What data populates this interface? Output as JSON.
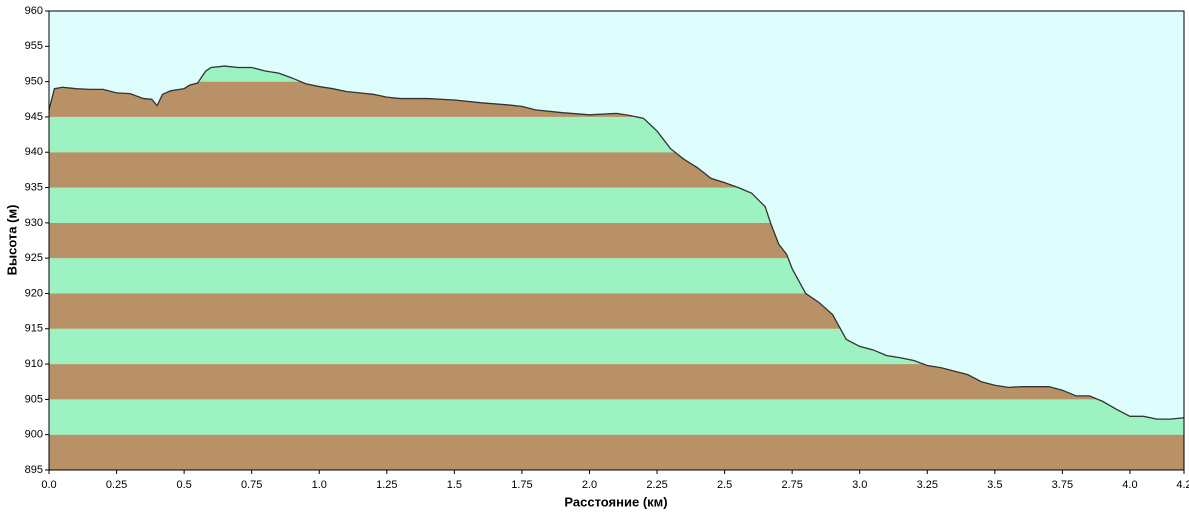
{
  "chart_data": {
    "type": "area",
    "x_label": "Расстояние  (км)",
    "y_label": "Высота (м)",
    "x": [
      0,
      0.02,
      0.05,
      0.1,
      0.15,
      0.2,
      0.25,
      0.3,
      0.35,
      0.38,
      0.4,
      0.42,
      0.45,
      0.5,
      0.52,
      0.55,
      0.58,
      0.6,
      0.65,
      0.7,
      0.75,
      0.8,
      0.85,
      0.9,
      0.95,
      1.0,
      1.05,
      1.1,
      1.15,
      1.2,
      1.25,
      1.3,
      1.4,
      1.5,
      1.6,
      1.7,
      1.75,
      1.8,
      1.9,
      2.0,
      2.1,
      2.15,
      2.2,
      2.25,
      2.3,
      2.35,
      2.4,
      2.45,
      2.5,
      2.55,
      2.6,
      2.65,
      2.67,
      2.7,
      2.73,
      2.75,
      2.8,
      2.85,
      2.9,
      2.95,
      3.0,
      3.05,
      3.1,
      3.15,
      3.2,
      3.25,
      3.3,
      3.35,
      3.4,
      3.45,
      3.5,
      3.55,
      3.6,
      3.7,
      3.75,
      3.8,
      3.85,
      3.9,
      3.95,
      4.0,
      4.05,
      4.1,
      4.15,
      4.2
    ],
    "values": [
      946,
      949,
      949.2,
      949,
      948.9,
      948.9,
      948.4,
      948.3,
      947.6,
      947.5,
      946.6,
      948.2,
      948.7,
      949,
      949.5,
      949.8,
      951.5,
      952,
      952.2,
      952,
      952,
      951.5,
      951.2,
      950.5,
      949.7,
      949.3,
      949,
      948.6,
      948.4,
      948.2,
      947.8,
      947.6,
      947.6,
      947.4,
      947,
      946.7,
      946.5,
      946,
      945.6,
      945.3,
      945.5,
      945.2,
      944.8,
      943,
      940.5,
      939,
      937.8,
      936.3,
      935.7,
      935,
      934.2,
      932.3,
      930,
      927,
      925.5,
      923.5,
      920,
      918.7,
      917,
      913.5,
      912.5,
      912,
      911.2,
      910.9,
      910.5,
      909.8,
      909.5,
      909,
      908.5,
      907.5,
      907,
      906.7,
      906.8,
      906.8,
      906.3,
      905.5,
      905.5,
      904.7,
      903.6,
      902.6,
      902.6,
      902.2,
      902.2,
      902.4
    ],
    "xlim": [
      0,
      4.2
    ],
    "xticks": [
      {
        "value": 0,
        "label": "0.0"
      },
      0.25,
      0.5,
      0.75,
      {
        "value": 1,
        "label": "1.0"
      },
      1.25,
      1.5,
      1.75,
      {
        "value": 2,
        "label": "2.0"
      },
      2.25,
      2.5,
      2.75,
      {
        "value": 3,
        "label": "3.0"
      },
      3.25,
      3.5,
      3.75,
      {
        "value": 4,
        "label": "4.0"
      },
      4.2
    ],
    "ylim": [
      895,
      960
    ],
    "yticks": [
      895,
      900,
      905,
      910,
      915,
      920,
      925,
      930,
      935,
      940,
      945,
      950,
      955,
      960
    ],
    "line_color": "#333333",
    "background": "#ddfefd",
    "band_colors": [
      "#b89266",
      "#9cf2c0"
    ]
  }
}
